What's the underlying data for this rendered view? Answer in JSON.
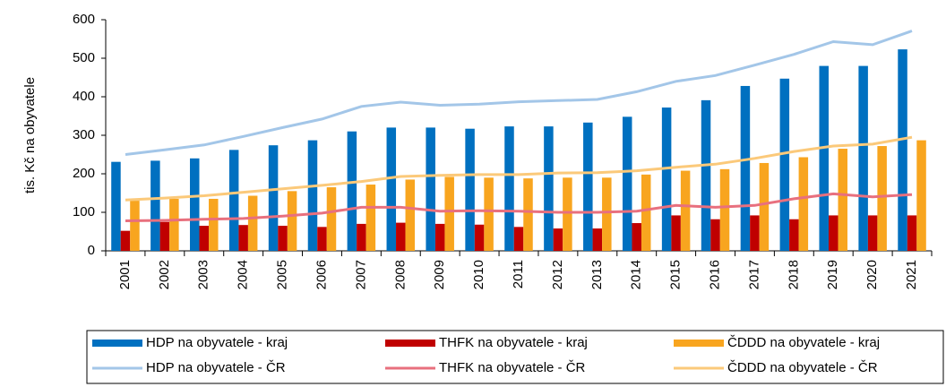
{
  "chart_data": {
    "type": "bar",
    "y_label": "tis. Kč na obyvatele",
    "categories": [
      "2001",
      "2002",
      "2003",
      "2004",
      "2005",
      "2006",
      "2007",
      "2008",
      "2009",
      "2010",
      "2011",
      "2012",
      "2013",
      "2014",
      "2015",
      "2016",
      "2017",
      "2018",
      "2019",
      "2020",
      "2021"
    ],
    "ylim": [
      0,
      600
    ],
    "yticks": [
      0,
      100,
      200,
      300,
      400,
      500,
      600
    ],
    "series": [
      {
        "name": "HDP na obyvatele - kraj",
        "type": "bar",
        "color": "#0070c0",
        "values": [
          231,
          234,
          240,
          262,
          274,
          287,
          310,
          320,
          320,
          317,
          323,
          323,
          333,
          348,
          372,
          391,
          428,
          447,
          480,
          480,
          523
        ]
      },
      {
        "name": "THFK na obyvatele - kraj",
        "type": "bar",
        "color": "#c00000",
        "values": [
          52,
          75,
          65,
          67,
          65,
          62,
          70,
          73,
          70,
          68,
          62,
          58,
          58,
          72,
          92,
          82,
          92,
          82,
          92,
          92,
          92
        ]
      },
      {
        "name": "ČDDD na obyvatele - kraj",
        "type": "bar",
        "color": "#f8a51f",
        "values": [
          130,
          135,
          135,
          143,
          155,
          165,
          172,
          185,
          192,
          190,
          188,
          190,
          190,
          198,
          208,
          212,
          228,
          243,
          265,
          272,
          287
        ]
      },
      {
        "name": "HDP na obyvatele - ČR",
        "type": "line",
        "color": "#a3c6e8",
        "values": [
          250,
          262,
          275,
          297,
          320,
          342,
          375,
          386,
          378,
          381,
          387,
          390,
          393,
          413,
          440,
          455,
          482,
          510,
          543,
          535,
          571
        ]
      },
      {
        "name": "THFK na obyvatele - ČR",
        "type": "line",
        "color": "#e8707e",
        "values": [
          78,
          79,
          82,
          84,
          90,
          98,
          113,
          113,
          103,
          104,
          103,
          100,
          100,
          103,
          118,
          113,
          118,
          135,
          148,
          140,
          146
        ]
      },
      {
        "name": "ČDDD na obyvatele - ČR",
        "type": "line",
        "color": "#fbc97a",
        "values": [
          132,
          137,
          143,
          152,
          161,
          170,
          180,
          193,
          196,
          198,
          198,
          202,
          203,
          208,
          217,
          225,
          240,
          258,
          272,
          277,
          295
        ]
      }
    ]
  }
}
